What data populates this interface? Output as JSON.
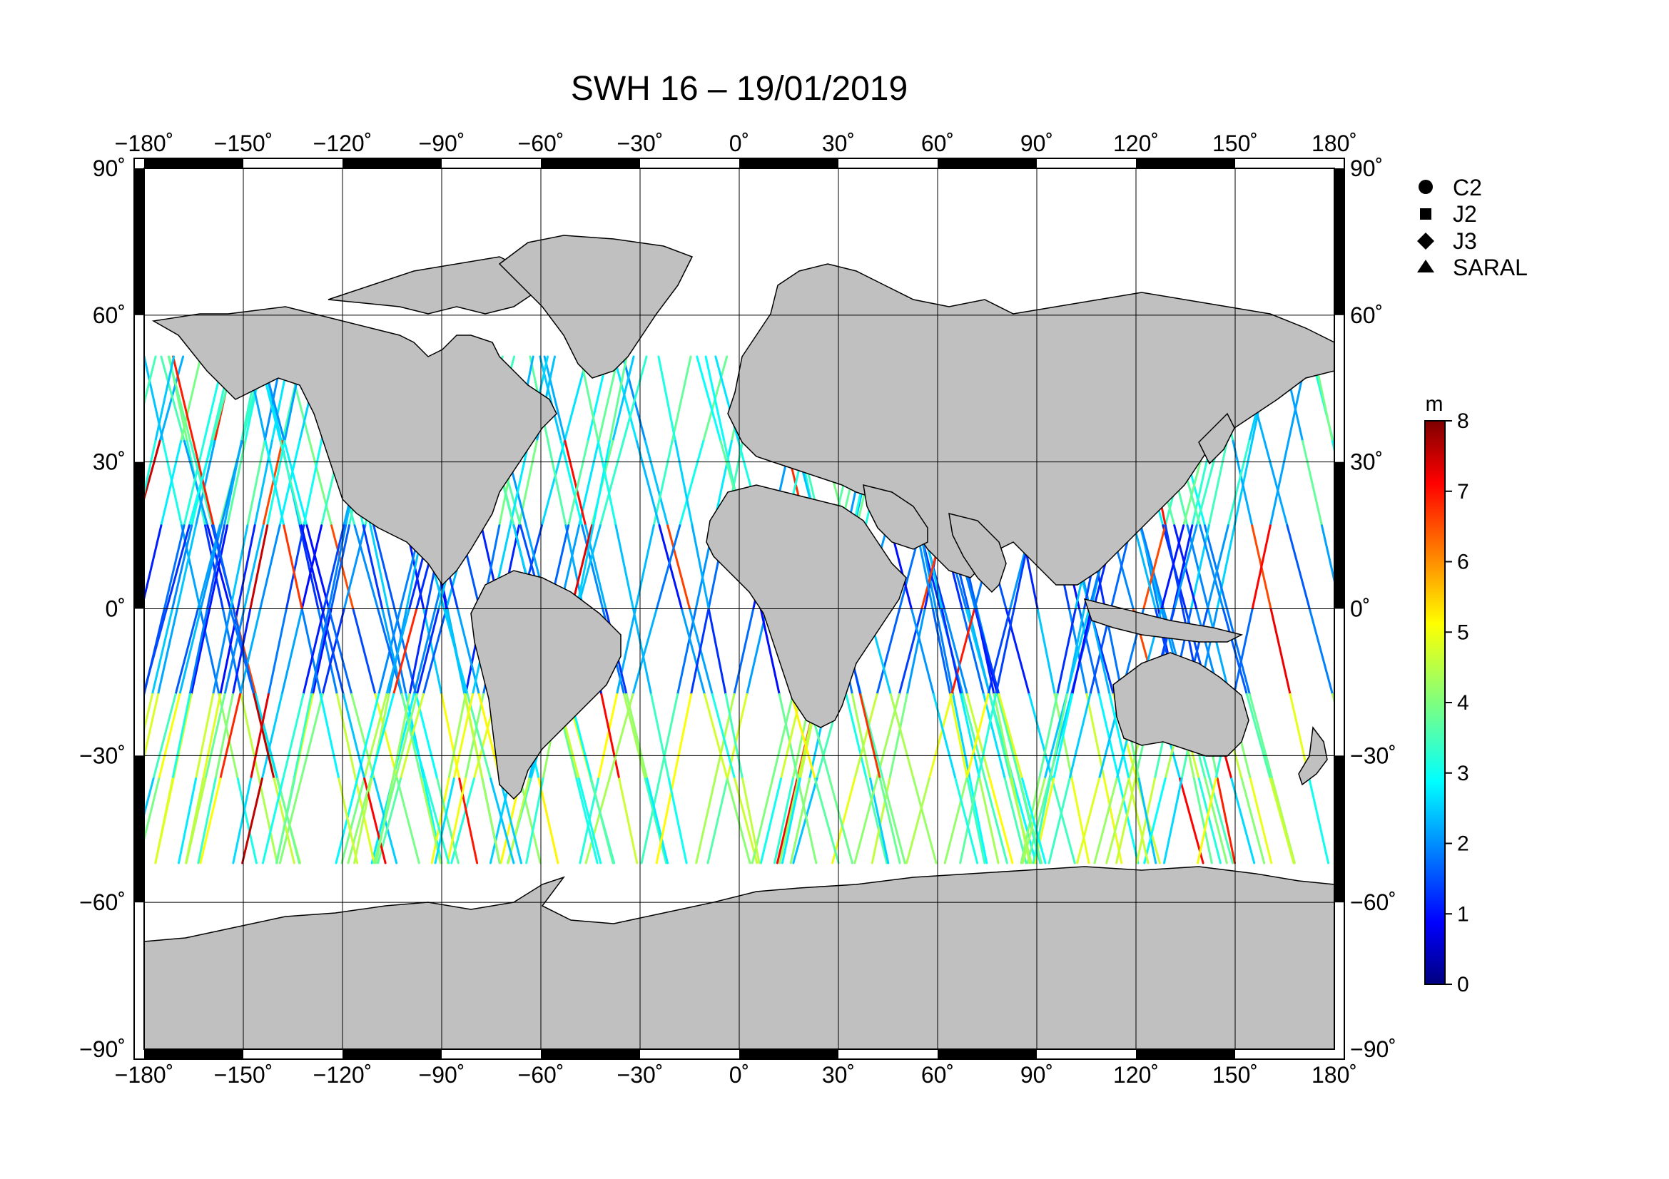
{
  "title": "SWH 16 – 19/01/2019",
  "projection": "equirectangular",
  "longitude_ticks": [
    "−180˚",
    "−150˚",
    "−120˚",
    "−90˚",
    "−60˚",
    "−30˚",
    "0˚",
    "30˚",
    "60˚",
    "90˚",
    "120˚",
    "150˚",
    "180˚"
  ],
  "latitude_ticks": [
    "90˚",
    "60˚",
    "30˚",
    "0˚",
    "−30˚",
    "−60˚",
    "−90˚"
  ],
  "legend": {
    "items": [
      {
        "label": "C2",
        "marker": "circle"
      },
      {
        "label": "J2",
        "marker": "square"
      },
      {
        "label": "J3",
        "marker": "diamond"
      },
      {
        "label": "SARAL",
        "marker": "triangle"
      }
    ]
  },
  "colorbar": {
    "unit": "m",
    "ticks": [
      "0",
      "1",
      "2",
      "3",
      "4",
      "5",
      "6",
      "7",
      "8"
    ],
    "range": [
      0,
      8
    ],
    "colormap": "jet"
  },
  "colors": {
    "land": "#c0c0c0",
    "coastline": "#000000",
    "ocean": "#ffffff",
    "grid": "#000000"
  }
}
